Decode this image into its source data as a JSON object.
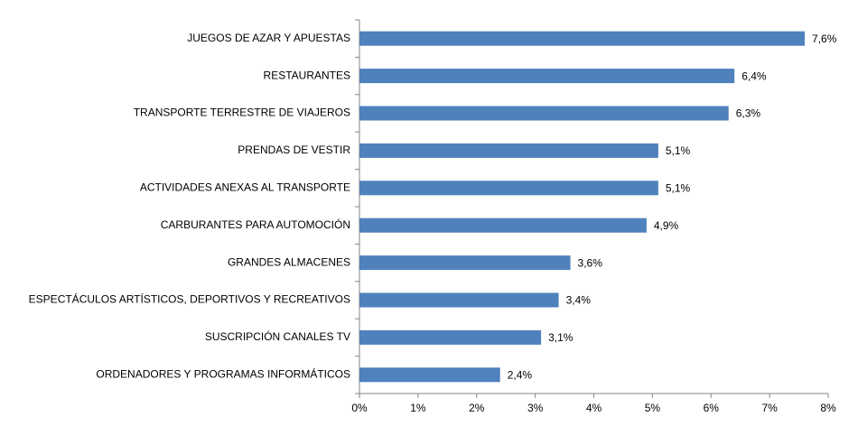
{
  "chart_data": {
    "type": "bar",
    "orientation": "horizontal",
    "categories": [
      "JUEGOS DE AZAR Y APUESTAS",
      "RESTAURANTES",
      "TRANSPORTE TERRESTRE DE VIAJEROS",
      "PRENDAS DE VESTIR",
      "ACTIVIDADES ANEXAS AL TRANSPORTE",
      "CARBURANTES PARA AUTOMOCIÓN",
      "GRANDES ALMACENES",
      "ESPECTÁCULOS ARTÍSTICOS, DEPORTIVOS Y RECREATIVOS",
      "SUSCRIPCIÓN CANALES TV",
      "ORDENADORES Y PROGRAMAS INFORMÁTICOS"
    ],
    "values": [
      7.6,
      6.4,
      6.3,
      5.1,
      5.1,
      4.9,
      3.6,
      3.4,
      3.1,
      2.4
    ],
    "value_labels": [
      "7,6%",
      "6,4%",
      "6,3%",
      "5,1%",
      "5,1%",
      "4,9%",
      "3,6%",
      "3,4%",
      "3,1%",
      "2,4%"
    ],
    "color": "#4f81bd",
    "xlim": [
      0,
      8
    ],
    "xticks": [
      {
        "value": 0,
        "label": "0%"
      },
      {
        "value": 1,
        "label": "1%"
      },
      {
        "value": 2,
        "label": "2%"
      },
      {
        "value": 3,
        "label": "3%"
      },
      {
        "value": 4,
        "label": "4%"
      },
      {
        "value": 5,
        "label": "5%"
      },
      {
        "value": 6,
        "label": "6%"
      },
      {
        "value": 7,
        "label": "7%"
      },
      {
        "value": 8,
        "label": "8%"
      }
    ],
    "grid": false
  }
}
